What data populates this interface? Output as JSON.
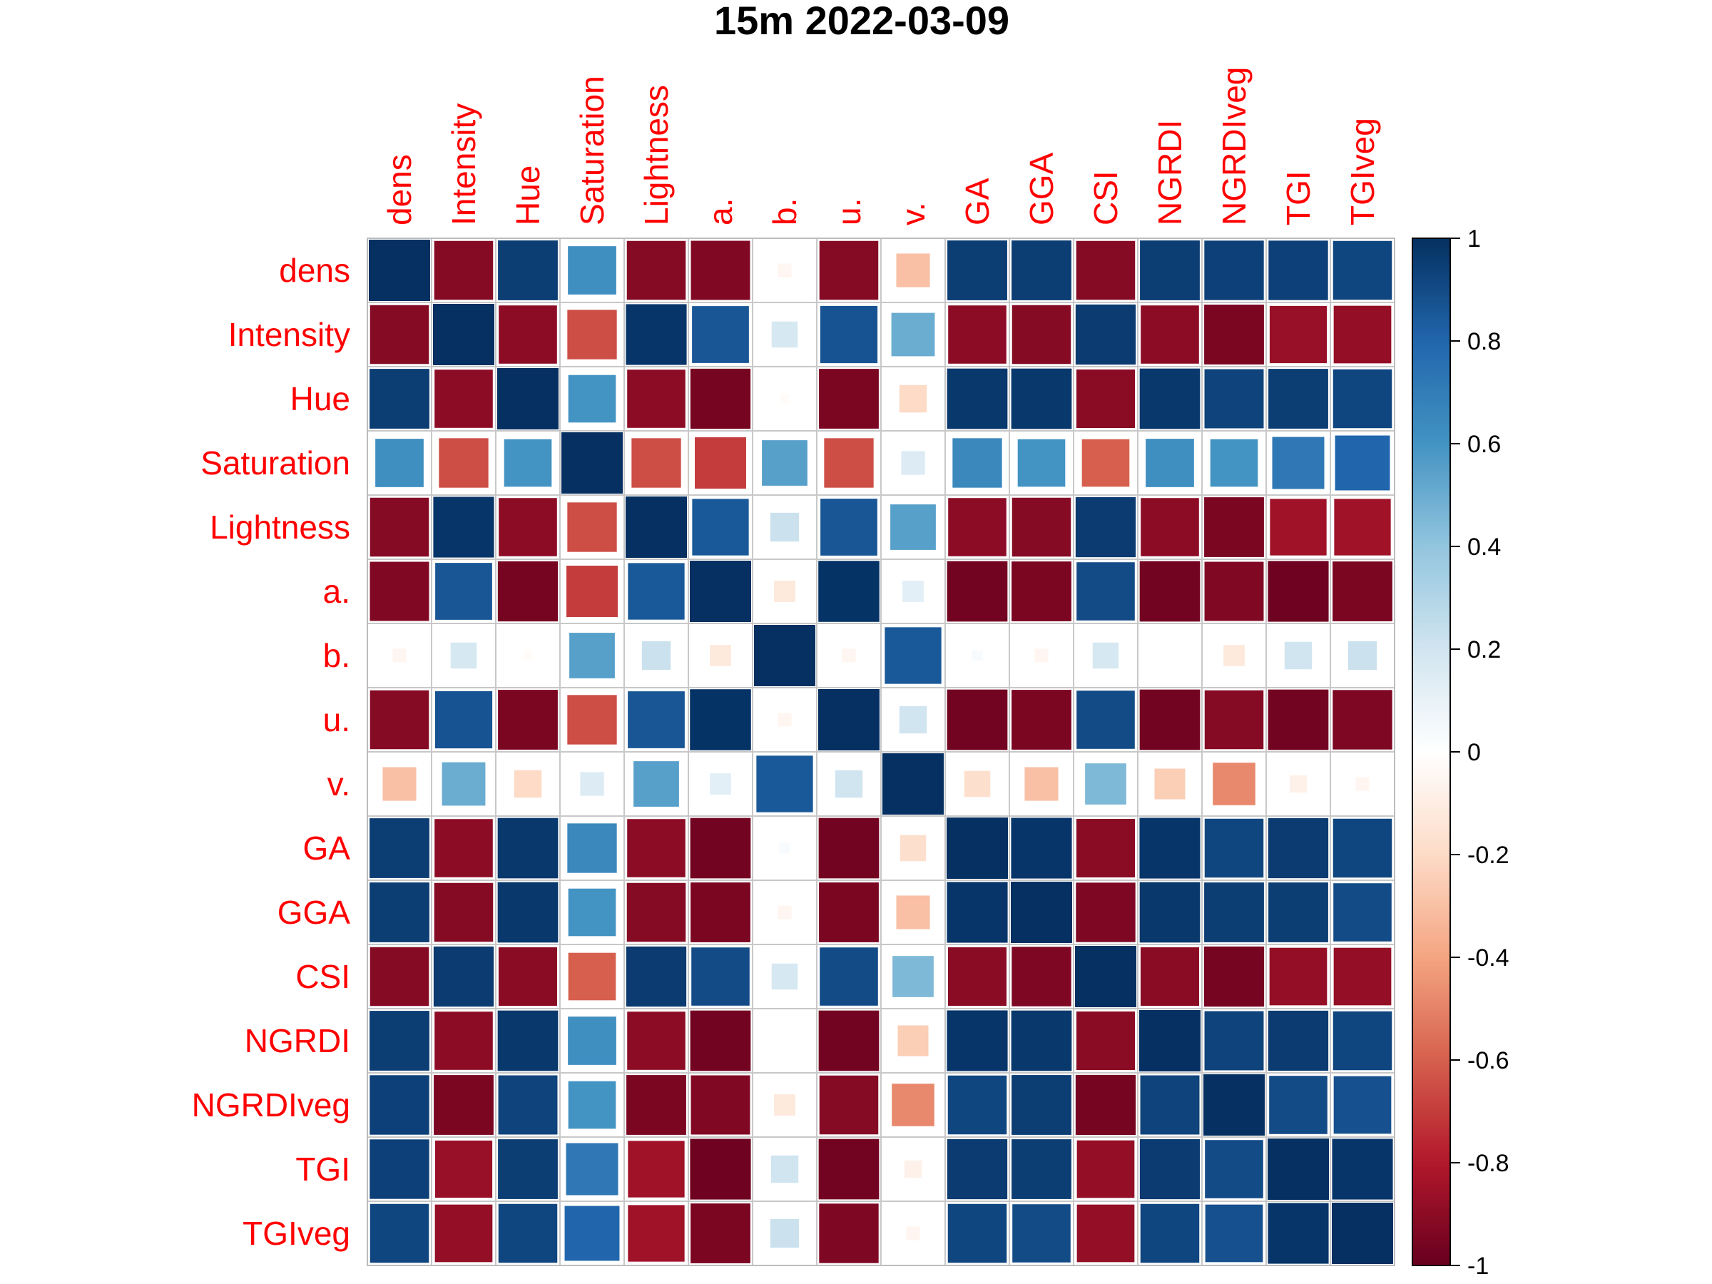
{
  "chart_data": {
    "type": "heatmap",
    "title": "15m 2022-03-09",
    "variables": [
      "dens",
      "Intensity",
      "Hue",
      "Saturation",
      "Lightness",
      "a.",
      "b.",
      "u.",
      "v.",
      "GA",
      "GGA",
      "CSI",
      "NGRDI",
      "NGRDIveg",
      "TGI",
      "TGIveg"
    ],
    "matrix": [
      [
        1.0,
        -0.92,
        0.95,
        0.62,
        -0.92,
        -0.93,
        -0.05,
        -0.92,
        -0.3,
        0.95,
        0.95,
        -0.92,
        0.95,
        0.94,
        0.94,
        0.92
      ],
      [
        -0.92,
        1.0,
        -0.9,
        -0.65,
        0.98,
        0.86,
        0.18,
        0.87,
        0.5,
        -0.9,
        -0.92,
        0.96,
        -0.9,
        -0.95,
        -0.87,
        -0.88
      ],
      [
        0.95,
        -0.9,
        1.0,
        0.6,
        -0.9,
        -0.96,
        -0.02,
        -0.95,
        -0.2,
        0.97,
        0.97,
        -0.91,
        0.97,
        0.93,
        0.95,
        0.92
      ],
      [
        0.62,
        -0.65,
        0.6,
        1.0,
        -0.65,
        -0.7,
        0.55,
        -0.65,
        0.15,
        0.65,
        0.6,
        -0.6,
        0.62,
        0.6,
        0.72,
        0.8
      ],
      [
        -0.92,
        0.98,
        -0.9,
        -0.65,
        1.0,
        0.85,
        0.22,
        0.86,
        0.55,
        -0.9,
        -0.92,
        0.96,
        -0.9,
        -0.95,
        -0.85,
        -0.85
      ],
      [
        -0.93,
        0.86,
        -0.96,
        -0.7,
        0.85,
        1.0,
        -0.12,
        0.99,
        0.12,
        -0.97,
        -0.95,
        0.9,
        -0.97,
        -0.93,
        -0.98,
        -0.95
      ],
      [
        -0.05,
        0.18,
        -0.02,
        0.55,
        0.22,
        -0.12,
        1.0,
        -0.05,
        0.85,
        0.03,
        -0.05,
        0.18,
        0.0,
        -0.12,
        0.2,
        0.22
      ],
      [
        -0.92,
        0.87,
        -0.95,
        -0.65,
        0.86,
        0.99,
        -0.05,
        1.0,
        0.2,
        -0.97,
        -0.95,
        0.9,
        -0.97,
        -0.92,
        -0.97,
        -0.94
      ],
      [
        -0.3,
        0.5,
        -0.2,
        0.15,
        0.55,
        0.12,
        0.85,
        0.2,
        1.0,
        -0.18,
        -0.3,
        0.45,
        -0.25,
        -0.48,
        -0.08,
        -0.05
      ],
      [
        0.95,
        -0.9,
        0.97,
        0.65,
        -0.9,
        -0.97,
        0.03,
        -0.97,
        -0.18,
        1.0,
        0.98,
        -0.91,
        0.98,
        0.92,
        0.96,
        0.92
      ],
      [
        0.95,
        -0.92,
        0.97,
        0.6,
        -0.92,
        -0.95,
        -0.05,
        -0.95,
        -0.3,
        0.98,
        1.0,
        -0.94,
        0.97,
        0.95,
        0.95,
        0.9
      ],
      [
        -0.92,
        0.96,
        -0.91,
        -0.6,
        0.96,
        0.9,
        0.18,
        0.9,
        0.45,
        -0.91,
        -0.94,
        1.0,
        -0.91,
        -0.96,
        -0.88,
        -0.88
      ],
      [
        0.95,
        -0.9,
        0.97,
        0.62,
        -0.9,
        -0.97,
        0.0,
        -0.97,
        -0.25,
        0.98,
        0.97,
        -0.91,
        1.0,
        0.93,
        0.96,
        0.92
      ],
      [
        0.94,
        -0.95,
        0.93,
        0.6,
        -0.95,
        -0.93,
        -0.12,
        -0.92,
        -0.48,
        0.92,
        0.95,
        -0.96,
        0.93,
        1.0,
        0.9,
        0.88
      ],
      [
        0.94,
        -0.87,
        0.95,
        0.72,
        -0.85,
        -0.98,
        0.2,
        -0.97,
        -0.08,
        0.96,
        0.95,
        -0.88,
        0.96,
        0.9,
        1.0,
        0.98
      ],
      [
        0.92,
        -0.88,
        0.92,
        0.8,
        -0.85,
        -0.95,
        0.22,
        -0.94,
        -0.05,
        0.92,
        0.9,
        -0.88,
        0.92,
        0.88,
        0.98,
        1.0
      ]
    ],
    "colorbar": {
      "range": [
        -1,
        1
      ],
      "ticks": [
        "1",
        "0.8",
        "0.6",
        "0.4",
        "0.2",
        "0",
        "-0.2",
        "-0.4",
        "-0.6",
        "-0.8",
        "-1"
      ],
      "low_color": "#67001f",
      "mid_color": "#ffffff",
      "high_color": "#053061"
    },
    "label_color": "#ff0000",
    "grid": true
  }
}
